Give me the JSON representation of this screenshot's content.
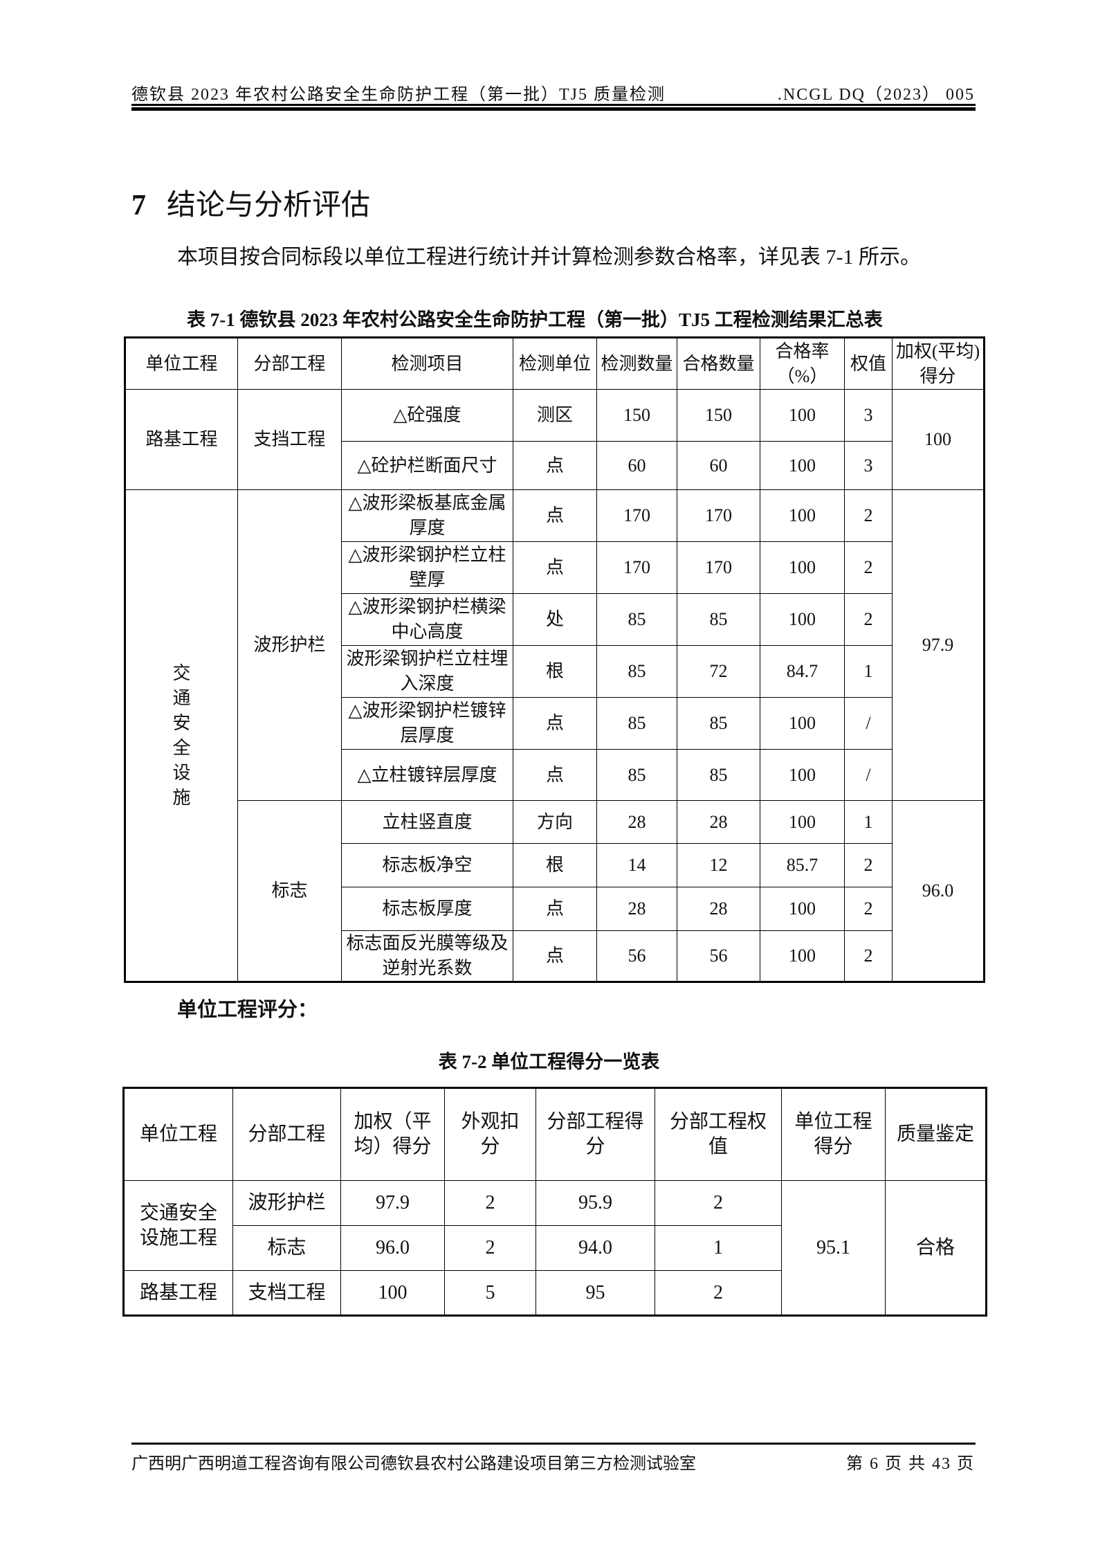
{
  "header": {
    "left": "德钦县 2023 年农村公路安全生命防护工程（第一批）TJ5 质量检测",
    "right": ".NCGL DQ（2023） 005"
  },
  "section": {
    "number": "7",
    "title": "结论与分析评估"
  },
  "paragraph": "本项目按合同标段以单位工程进行统计并计算检测参数合格率，详见表 7-1 所示。",
  "table1": {
    "caption": "表 7-1  德钦县 2023 年农村公路安全生命防护工程（第一批）TJ5 工程检测结果汇总表",
    "headers": [
      "单位工程",
      "分部工程",
      "检测项目",
      "检测单位",
      "检测数量",
      "合格数量",
      "合格率（%）",
      "权值",
      "加权(平均)得分"
    ],
    "groups": [
      {
        "unit": "路基工程",
        "subs": [
          {
            "name": "支挡工程",
            "score": "100",
            "rows": [
              [
                "△砼强度",
                "测区",
                "150",
                "150",
                "100",
                "3"
              ],
              [
                "△砼护栏断面尺寸",
                "点",
                "60",
                "60",
                "100",
                "3"
              ]
            ]
          }
        ]
      },
      {
        "unit": "交通安全设施",
        "subs": [
          {
            "name": "波形护栏",
            "score": "97.9",
            "rows": [
              [
                "△波形梁板基底金属厚度",
                "点",
                "170",
                "170",
                "100",
                "2"
              ],
              [
                "△波形梁钢护栏立柱壁厚",
                "点",
                "170",
                "170",
                "100",
                "2"
              ],
              [
                "△波形梁钢护栏横梁中心高度",
                "处",
                "85",
                "85",
                "100",
                "2"
              ],
              [
                "波形梁钢护栏立柱埋入深度",
                "根",
                "85",
                "72",
                "84.7",
                "1"
              ],
              [
                "△波形梁钢护栏镀锌层厚度",
                "点",
                "85",
                "85",
                "100",
                "/"
              ],
              [
                "△立柱镀锌层厚度",
                "点",
                "85",
                "85",
                "100",
                "/"
              ]
            ]
          },
          {
            "name": "标志",
            "score": "96.0",
            "rows": [
              [
                "立柱竖直度",
                "方向",
                "28",
                "28",
                "100",
                "1"
              ],
              [
                "标志板净空",
                "根",
                "14",
                "12",
                "85.7",
                "2"
              ],
              [
                "标志板厚度",
                "点",
                "28",
                "28",
                "100",
                "2"
              ],
              [
                "标志面反光膜等级及逆射光系数",
                "点",
                "56",
                "56",
                "100",
                "2"
              ]
            ]
          }
        ]
      }
    ]
  },
  "subheading": "单位工程评分：",
  "table2": {
    "caption": "表 7-2  单位工程得分一览表",
    "headers": [
      "单位工程",
      "分部工程",
      "加权（平均）得分",
      "外观扣分",
      "分部工程得分",
      "分部工程权值",
      "单位工程得分",
      "质量鉴定"
    ],
    "rows": [
      {
        "unit": "交通安全设施工程",
        "sub": "波形护栏",
        "weighted": "97.9",
        "deduct": "2",
        "score": "95.9",
        "weight": "2"
      },
      {
        "unit": "",
        "sub": "标志",
        "weighted": "96.0",
        "deduct": "2",
        "score": "94.0",
        "weight": "1"
      },
      {
        "unit": "路基工程",
        "sub": "支档工程",
        "weighted": "100",
        "deduct": "5",
        "score": "95",
        "weight": "2"
      }
    ],
    "unit_score": "95.1",
    "quality": "合格"
  },
  "footer": {
    "left": "广西明广西明道工程咨询有限公司德钦县农村公路建设项目第三方检测试验室",
    "right": "第 6 页 共 43 页"
  }
}
